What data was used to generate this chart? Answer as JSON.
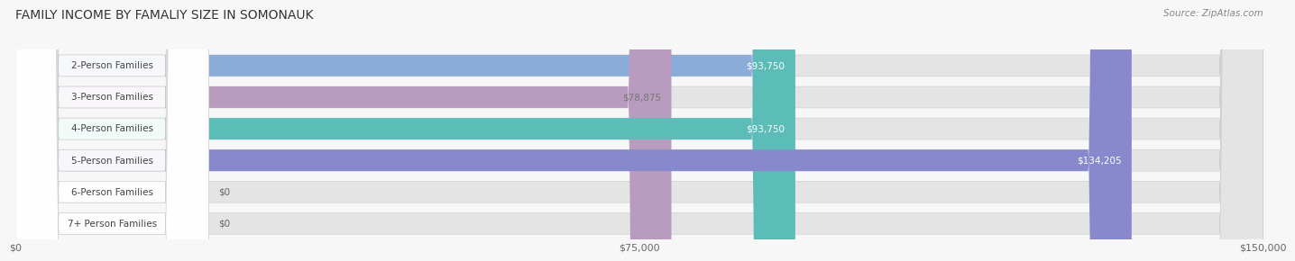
{
  "title": "FAMILY INCOME BY FAMALIY SIZE IN SOMONAUK",
  "source": "Source: ZipAtlas.com",
  "categories": [
    "2-Person Families",
    "3-Person Families",
    "4-Person Families",
    "5-Person Families",
    "6-Person Families",
    "7+ Person Families"
  ],
  "values": [
    93750,
    78875,
    93750,
    134205,
    0,
    0
  ],
  "bar_colors": [
    "#8babd8",
    "#b89bbf",
    "#5bbcb8",
    "#8888cc",
    "#f4a0b0",
    "#f5c89a"
  ],
  "label_colors": [
    "#ffffff",
    "#777777",
    "#ffffff",
    "#ffffff",
    "#777777",
    "#777777"
  ],
  "max_value": 150000,
  "x_ticks": [
    0,
    75000,
    150000
  ],
  "x_tick_labels": [
    "$0",
    "$75,000",
    "$150,000"
  ],
  "background_color": "#f7f7f7",
  "bar_bg_color": "#e4e4e4",
  "title_fontsize": 10,
  "source_fontsize": 7.5,
  "bar_label_fontsize": 7.5,
  "category_fontsize": 7.5
}
